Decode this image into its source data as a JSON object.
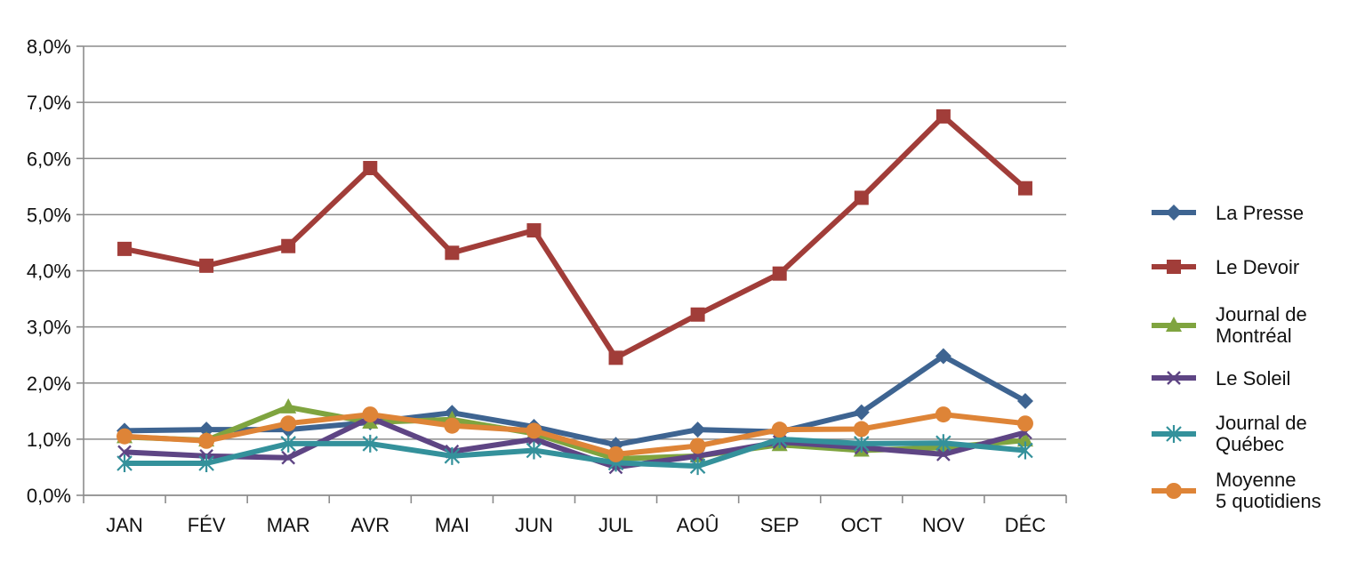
{
  "chart_data": {
    "type": "line",
    "title": "",
    "xlabel": "",
    "ylabel": "",
    "ylim": [
      0,
      8
    ],
    "y_ticks": [
      "0,0%",
      "1,0%",
      "2,0%",
      "3,0%",
      "4,0%",
      "5,0%",
      "6,0%",
      "7,0%",
      "8,0%"
    ],
    "grid": "horizontal",
    "legend_position": "right",
    "categories": [
      "JAN",
      "FÉV",
      "MAR",
      "AVR",
      "MAI",
      "JUN",
      "JUL",
      "AOÛ",
      "SEP",
      "OCT",
      "NOV",
      "DÉC"
    ],
    "series": [
      {
        "name": "La Presse",
        "legend_lines": [
          "La Presse"
        ],
        "color": "#3e6491",
        "marker": "diamond",
        "values": [
          1.15,
          1.17,
          1.17,
          1.3,
          1.47,
          1.22,
          0.9,
          1.17,
          1.13,
          1.48,
          2.48,
          1.68
        ]
      },
      {
        "name": "Le Devoir",
        "legend_lines": [
          "Le Devoir"
        ],
        "color": "#a13d39",
        "marker": "square",
        "values": [
          4.39,
          4.09,
          4.44,
          5.83,
          4.32,
          4.72,
          2.45,
          3.22,
          3.95,
          5.3,
          6.75,
          5.47
        ]
      },
      {
        "name": "Journal de Montréal",
        "legend_lines": [
          "Journal de",
          "Montréal"
        ],
        "color": "#7fa43f",
        "marker": "triangle",
        "values": [
          1.04,
          0.98,
          1.57,
          1.3,
          1.35,
          1.1,
          0.65,
          0.7,
          0.9,
          0.8,
          0.85,
          0.98
        ]
      },
      {
        "name": "Le Soleil",
        "legend_lines": [
          "Le Soleil"
        ],
        "color": "#5e4584",
        "marker": "x",
        "values": [
          0.77,
          0.7,
          0.67,
          1.38,
          0.78,
          1.0,
          0.5,
          0.7,
          0.95,
          0.85,
          0.73,
          1.12
        ]
      },
      {
        "name": "Journal de Québec",
        "legend_lines": [
          "Journal de",
          "Québec"
        ],
        "color": "#34919b",
        "marker": "star",
        "values": [
          0.57,
          0.57,
          0.92,
          0.92,
          0.7,
          0.8,
          0.58,
          0.52,
          1.0,
          0.92,
          0.93,
          0.8
        ]
      },
      {
        "name": "Moyenne 5 quotidiens",
        "legend_lines": [
          "Moyenne",
          "5 quotidiens"
        ],
        "color": "#de8437",
        "marker": "circle",
        "values": [
          1.05,
          0.97,
          1.28,
          1.44,
          1.24,
          1.15,
          0.73,
          0.88,
          1.17,
          1.18,
          1.44,
          1.28
        ]
      }
    ]
  }
}
